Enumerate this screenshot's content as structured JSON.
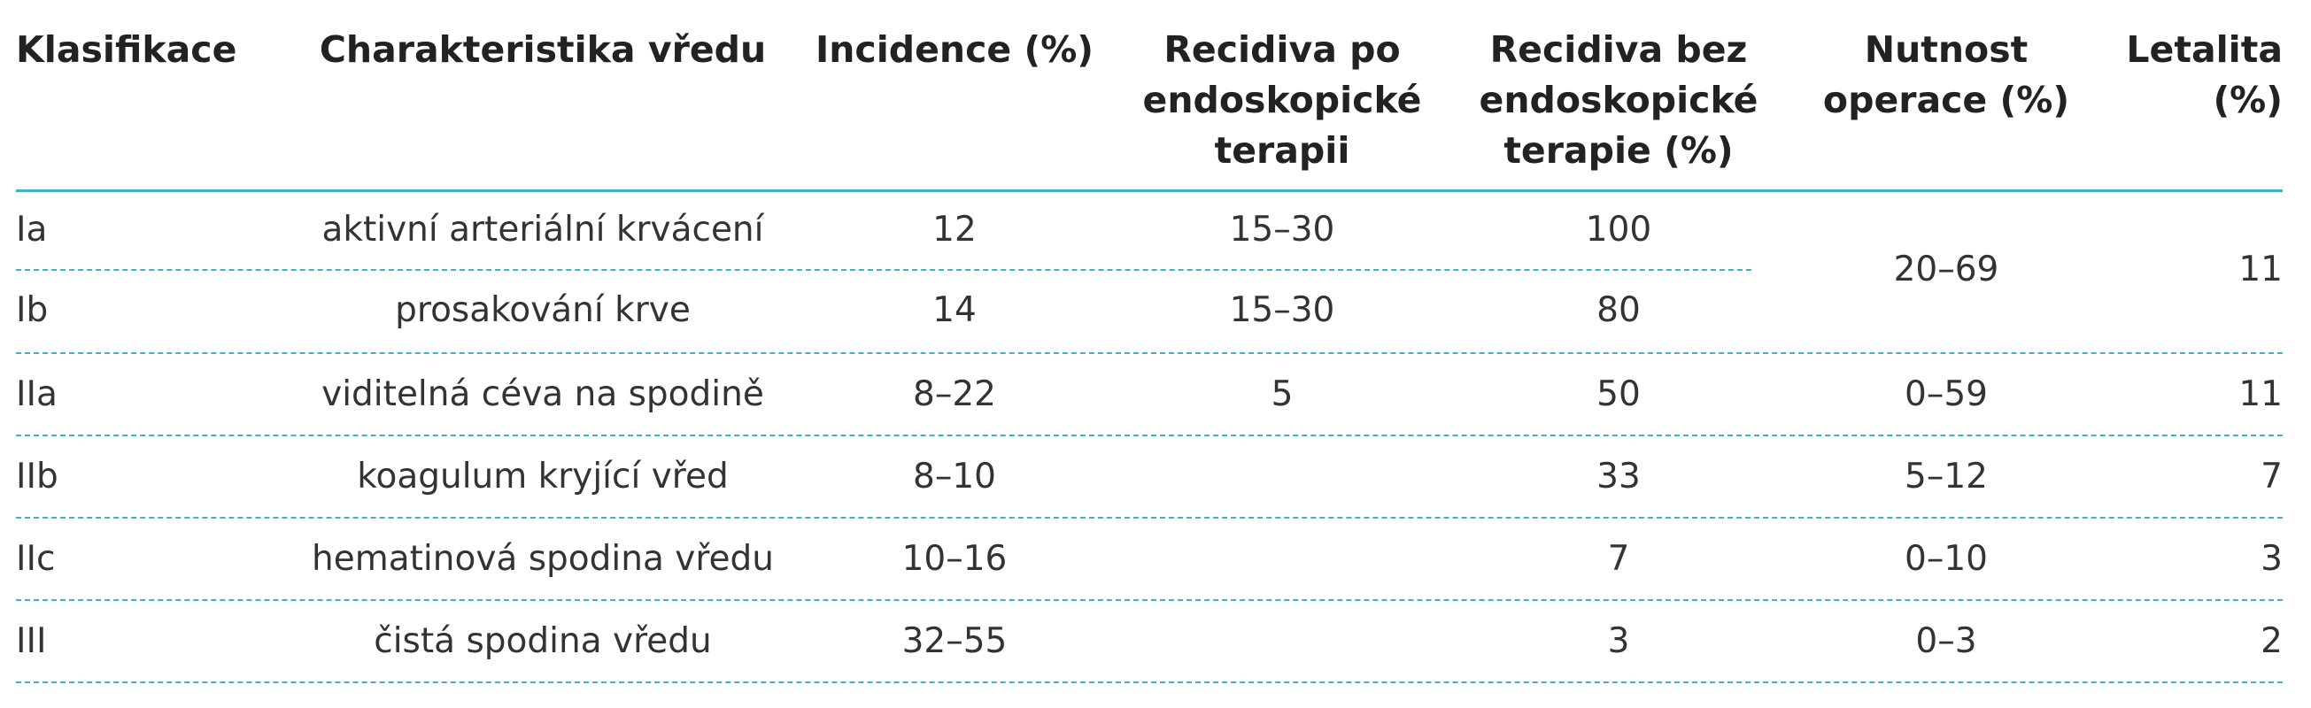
{
  "table": {
    "headers": {
      "klasifikace": "Klasifikace",
      "charakteristika": "Charakteristika vředu",
      "incidence": "Incidence (%)",
      "recidiva_po": [
        "Recidiva po",
        "endoskopické",
        "terapii"
      ],
      "recidiva_bez": [
        "Recidiva bez",
        "endoskopické",
        "terapie (%)"
      ],
      "nutnost": [
        "Nutnost",
        "operace (%)"
      ],
      "letalita": [
        "Letalita",
        "(%)"
      ]
    },
    "rows": [
      {
        "klasifikace": "Ia",
        "charakteristika": "aktivní arteriální krvácení",
        "incidence": "12",
        "recidiva_po": "15–30",
        "recidiva_bez": "100"
      },
      {
        "klasifikace": "Ib",
        "charakteristika": "prosakování krve",
        "incidence": "14",
        "recidiva_po": "15–30",
        "recidiva_bez": "80"
      },
      {
        "klasifikace": "IIa",
        "charakteristika": "viditelná céva na spodině",
        "incidence": "8–22",
        "recidiva_po": "5",
        "recidiva_bez": "50",
        "nutnost": "0–59",
        "letalita": "11"
      },
      {
        "klasifikace": "IIb",
        "charakteristika": "koagulum kryjící vřed",
        "incidence": "8–10",
        "recidiva_po": "",
        "recidiva_bez": "33",
        "nutnost": "5–12",
        "letalita": "7"
      },
      {
        "klasifikace": "IIc",
        "charakteristika": "hematinová spodina vředu",
        "incidence": "10–16",
        "recidiva_po": "",
        "recidiva_bez": "7",
        "nutnost": "0–10",
        "letalita": "3"
      },
      {
        "klasifikace": "III",
        "charakteristika": "čistá spodina vředu",
        "incidence": "32–55",
        "recidiva_po": "",
        "recidiva_bez": "3",
        "nutnost": "0–3",
        "letalita": "2"
      }
    ],
    "merged_ia_ib": {
      "nutnost": "20–69",
      "letalita": "11"
    }
  }
}
